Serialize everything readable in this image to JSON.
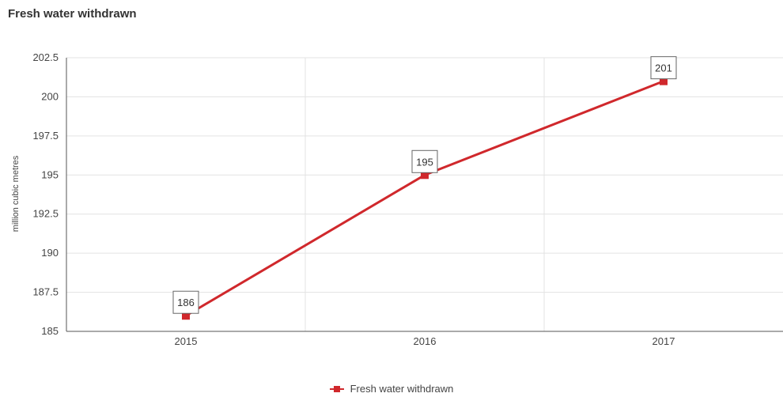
{
  "chart_data": {
    "type": "line",
    "title": "Fresh water withdrawn",
    "ylabel": "million cubic metres",
    "xlabel": "",
    "categories": [
      "2015",
      "2016",
      "2017"
    ],
    "series": [
      {
        "name": "Fresh water withdrawn",
        "values": [
          186,
          195,
          201
        ],
        "color": "#d0282c"
      }
    ],
    "data_labels": [
      "186",
      "195",
      "201"
    ],
    "ylim": [
      185,
      202.5
    ],
    "yticks": [
      "185",
      "187.5",
      "190",
      "192.5",
      "195",
      "197.5",
      "200",
      "202.5"
    ],
    "grid": true,
    "legend_position": "bottom"
  }
}
